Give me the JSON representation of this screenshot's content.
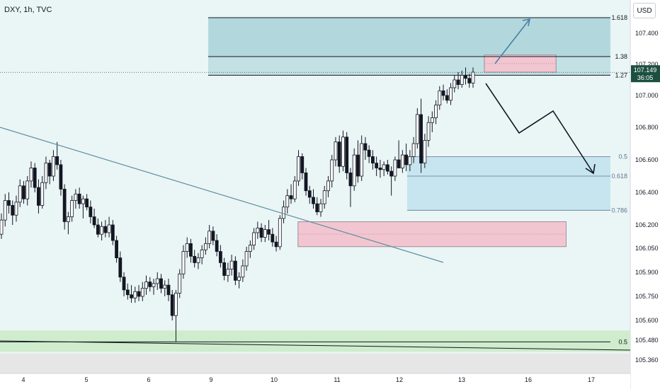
{
  "header": {
    "title": "DXY, 1h, TVC",
    "currency_button": "USD"
  },
  "price_tag": {
    "price": "107.149",
    "countdown": "36:05",
    "color": "#1c4f40"
  },
  "colors": {
    "background": "#eaf5f6",
    "bull": "#ffffff",
    "bear": "#131722",
    "fib_upper_zone": "#a8d2d8",
    "fib_lower_zone": "#bfe2ec",
    "supply_zone": "#f2c6d0",
    "demand_zone": "#cfeccc",
    "trendline": "#5f8fa0",
    "projection_up": "#4a7fa8",
    "projection_down": "#131722"
  },
  "chart_data": {
    "type": "candlestick",
    "symbol": "DXY",
    "timeframe": "1h",
    "source": "TVC",
    "y_axis": {
      "ticks": [
        107.4,
        107.2,
        107.0,
        106.8,
        106.6,
        106.4,
        106.2,
        106.05,
        105.9,
        105.75,
        105.6,
        105.48,
        105.36
      ],
      "tick_labels": [
        "107.400",
        "107.200",
        "107.000",
        "106.800",
        "106.600",
        "106.400",
        "106.200",
        "106.050",
        "105.900",
        "105.750",
        "105.600",
        "105.480",
        "105.360"
      ],
      "range": [
        105.33,
        107.6
      ]
    },
    "x_axis": {
      "labels": [
        "4",
        "5",
        "6",
        "9",
        "10",
        "11",
        "12",
        "13",
        "16",
        "17"
      ],
      "label_session_index": [
        0,
        1,
        2,
        3,
        4,
        5,
        6,
        7,
        8,
        9
      ]
    },
    "last_price": 107.149,
    "fib_levels_upper": [
      {
        "label": "1.618",
        "price": 107.5
      },
      {
        "label": "1.38",
        "price": 107.25
      },
      {
        "label": "1.27",
        "price": 107.13
      }
    ],
    "fib_levels_lower": [
      {
        "label": "0.5",
        "price": 106.62
      },
      {
        "label": "0.618",
        "price": 106.5
      },
      {
        "label": "0.786",
        "price": 106.29
      }
    ],
    "bottom_level": {
      "label": "0.5",
      "price": 105.47
    },
    "zones": [
      {
        "kind": "supply",
        "top": 107.26,
        "bottom": 107.15,
        "start_session": 7.34,
        "end_session": 8.44
      },
      {
        "kind": "demand",
        "top": 106.22,
        "bottom": 106.06,
        "start_session": 4.38,
        "end_session": 8.6
      }
    ],
    "candles": [
      {
        "o": 106.14,
        "h": 106.27,
        "l": 106.11,
        "c": 106.23
      },
      {
        "o": 106.23,
        "h": 106.39,
        "l": 106.19,
        "c": 106.35
      },
      {
        "o": 106.35,
        "h": 106.4,
        "l": 106.27,
        "c": 106.32
      },
      {
        "o": 106.32,
        "h": 106.35,
        "l": 106.2,
        "c": 106.26
      },
      {
        "o": 106.26,
        "h": 106.38,
        "l": 106.22,
        "c": 106.34
      },
      {
        "o": 106.34,
        "h": 106.48,
        "l": 106.31,
        "c": 106.44
      },
      {
        "o": 106.44,
        "h": 106.47,
        "l": 106.33,
        "c": 106.36
      },
      {
        "o": 106.36,
        "h": 106.5,
        "l": 106.32,
        "c": 106.47
      },
      {
        "o": 106.47,
        "h": 106.59,
        "l": 106.43,
        "c": 106.55
      },
      {
        "o": 106.55,
        "h": 106.58,
        "l": 106.4,
        "c": 106.43
      },
      {
        "o": 106.43,
        "h": 106.48,
        "l": 106.27,
        "c": 106.32
      },
      {
        "o": 106.32,
        "h": 106.5,
        "l": 106.3,
        "c": 106.46
      },
      {
        "o": 106.46,
        "h": 106.62,
        "l": 106.42,
        "c": 106.58
      },
      {
        "o": 106.58,
        "h": 106.6,
        "l": 106.45,
        "c": 106.5
      },
      {
        "o": 106.5,
        "h": 106.66,
        "l": 106.47,
        "c": 106.62
      },
      {
        "o": 106.62,
        "h": 106.71,
        "l": 106.54,
        "c": 106.57
      },
      {
        "o": 106.57,
        "h": 106.6,
        "l": 106.38,
        "c": 106.42
      },
      {
        "o": 106.42,
        "h": 106.45,
        "l": 106.17,
        "c": 106.22
      },
      {
        "o": 106.22,
        "h": 106.28,
        "l": 106.14,
        "c": 106.25
      },
      {
        "o": 106.25,
        "h": 106.38,
        "l": 106.22,
        "c": 106.35
      },
      {
        "o": 106.35,
        "h": 106.42,
        "l": 106.3,
        "c": 106.39
      },
      {
        "o": 106.39,
        "h": 106.43,
        "l": 106.3,
        "c": 106.33
      },
      {
        "o": 106.33,
        "h": 106.38,
        "l": 106.24,
        "c": 106.36
      },
      {
        "o": 106.36,
        "h": 106.39,
        "l": 106.29,
        "c": 106.31
      },
      {
        "o": 106.31,
        "h": 106.35,
        "l": 106.21,
        "c": 106.25
      },
      {
        "o": 106.25,
        "h": 106.3,
        "l": 106.18,
        "c": 106.2
      },
      {
        "o": 106.2,
        "h": 106.24,
        "l": 106.12,
        "c": 106.14
      },
      {
        "o": 106.14,
        "h": 106.22,
        "l": 106.1,
        "c": 106.19
      },
      {
        "o": 106.19,
        "h": 106.23,
        "l": 106.12,
        "c": 106.15
      },
      {
        "o": 106.15,
        "h": 106.25,
        "l": 106.12,
        "c": 106.2
      },
      {
        "o": 106.2,
        "h": 106.23,
        "l": 106.07,
        "c": 106.1
      },
      {
        "o": 106.1,
        "h": 106.13,
        "l": 105.96,
        "c": 105.99
      },
      {
        "o": 105.99,
        "h": 106.03,
        "l": 105.84,
        "c": 105.87
      },
      {
        "o": 105.87,
        "h": 105.9,
        "l": 105.75,
        "c": 105.79
      },
      {
        "o": 105.79,
        "h": 105.83,
        "l": 105.73,
        "c": 105.76
      },
      {
        "o": 105.76,
        "h": 105.82,
        "l": 105.71,
        "c": 105.74
      },
      {
        "o": 105.74,
        "h": 105.81,
        "l": 105.71,
        "c": 105.78
      },
      {
        "o": 105.78,
        "h": 105.82,
        "l": 105.72,
        "c": 105.75
      },
      {
        "o": 105.75,
        "h": 105.84,
        "l": 105.72,
        "c": 105.8
      },
      {
        "o": 105.8,
        "h": 105.88,
        "l": 105.76,
        "c": 105.84
      },
      {
        "o": 105.84,
        "h": 105.87,
        "l": 105.78,
        "c": 105.81
      },
      {
        "o": 105.81,
        "h": 105.86,
        "l": 105.76,
        "c": 105.83
      },
      {
        "o": 105.83,
        "h": 105.9,
        "l": 105.79,
        "c": 105.86
      },
      {
        "o": 105.86,
        "h": 105.89,
        "l": 105.77,
        "c": 105.8
      },
      {
        "o": 105.8,
        "h": 105.85,
        "l": 105.75,
        "c": 105.82
      },
      {
        "o": 105.82,
        "h": 105.86,
        "l": 105.72,
        "c": 105.76
      },
      {
        "o": 105.76,
        "h": 105.79,
        "l": 105.6,
        "c": 105.63
      },
      {
        "o": 105.63,
        "h": 105.79,
        "l": 105.47,
        "c": 105.77
      },
      {
        "o": 105.77,
        "h": 105.92,
        "l": 105.74,
        "c": 105.89
      },
      {
        "o": 105.89,
        "h": 106.07,
        "l": 105.86,
        "c": 106.03
      },
      {
        "o": 106.03,
        "h": 106.12,
        "l": 105.99,
        "c": 106.08
      },
      {
        "o": 106.08,
        "h": 106.11,
        "l": 105.96,
        "c": 106.0
      },
      {
        "o": 106.0,
        "h": 106.04,
        "l": 105.93,
        "c": 105.96
      },
      {
        "o": 105.96,
        "h": 106.02,
        "l": 105.92,
        "c": 105.99
      },
      {
        "o": 105.99,
        "h": 106.07,
        "l": 105.95,
        "c": 106.04
      },
      {
        "o": 106.04,
        "h": 106.12,
        "l": 106.01,
        "c": 106.08
      },
      {
        "o": 106.08,
        "h": 106.2,
        "l": 106.05,
        "c": 106.16
      },
      {
        "o": 106.16,
        "h": 106.19,
        "l": 106.07,
        "c": 106.1
      },
      {
        "o": 106.1,
        "h": 106.14,
        "l": 106.0,
        "c": 106.03
      },
      {
        "o": 106.03,
        "h": 106.07,
        "l": 105.93,
        "c": 105.96
      },
      {
        "o": 105.96,
        "h": 105.99,
        "l": 105.85,
        "c": 105.88
      },
      {
        "o": 105.88,
        "h": 105.96,
        "l": 105.84,
        "c": 105.92
      },
      {
        "o": 105.92,
        "h": 106.01,
        "l": 105.88,
        "c": 105.97
      },
      {
        "o": 105.97,
        "h": 106.0,
        "l": 105.82,
        "c": 105.85
      },
      {
        "o": 105.85,
        "h": 105.9,
        "l": 105.8,
        "c": 105.87
      },
      {
        "o": 105.87,
        "h": 105.98,
        "l": 105.84,
        "c": 105.94
      },
      {
        "o": 105.94,
        "h": 106.06,
        "l": 105.91,
        "c": 106.03
      },
      {
        "o": 106.03,
        "h": 106.1,
        "l": 105.99,
        "c": 106.07
      },
      {
        "o": 106.07,
        "h": 106.18,
        "l": 106.04,
        "c": 106.15
      },
      {
        "o": 106.15,
        "h": 106.22,
        "l": 106.11,
        "c": 106.18
      },
      {
        "o": 106.18,
        "h": 106.21,
        "l": 106.09,
        "c": 106.12
      },
      {
        "o": 106.12,
        "h": 106.2,
        "l": 106.09,
        "c": 106.17
      },
      {
        "o": 106.17,
        "h": 106.23,
        "l": 106.1,
        "c": 106.14
      },
      {
        "o": 106.14,
        "h": 106.18,
        "l": 106.06,
        "c": 106.09
      },
      {
        "o": 106.09,
        "h": 106.13,
        "l": 106.03,
        "c": 106.06
      },
      {
        "o": 106.06,
        "h": 106.26,
        "l": 106.04,
        "c": 106.24
      },
      {
        "o": 106.24,
        "h": 106.35,
        "l": 106.21,
        "c": 106.31
      },
      {
        "o": 106.31,
        "h": 106.42,
        "l": 106.27,
        "c": 106.38
      },
      {
        "o": 106.38,
        "h": 106.45,
        "l": 106.33,
        "c": 106.36
      },
      {
        "o": 106.36,
        "h": 106.5,
        "l": 106.34,
        "c": 106.47
      },
      {
        "o": 106.47,
        "h": 106.66,
        "l": 106.44,
        "c": 106.62
      },
      {
        "o": 106.62,
        "h": 106.64,
        "l": 106.48,
        "c": 106.52
      },
      {
        "o": 106.52,
        "h": 106.55,
        "l": 106.38,
        "c": 106.41
      },
      {
        "o": 106.41,
        "h": 106.44,
        "l": 106.33,
        "c": 106.37
      },
      {
        "o": 106.37,
        "h": 106.42,
        "l": 106.3,
        "c": 106.33
      },
      {
        "o": 106.33,
        "h": 106.37,
        "l": 106.26,
        "c": 106.28
      },
      {
        "o": 106.28,
        "h": 106.36,
        "l": 106.25,
        "c": 106.33
      },
      {
        "o": 106.33,
        "h": 106.44,
        "l": 106.3,
        "c": 106.41
      },
      {
        "o": 106.41,
        "h": 106.5,
        "l": 106.37,
        "c": 106.47
      },
      {
        "o": 106.47,
        "h": 106.63,
        "l": 106.43,
        "c": 106.6
      },
      {
        "o": 106.6,
        "h": 106.74,
        "l": 106.56,
        "c": 106.71
      },
      {
        "o": 106.71,
        "h": 106.75,
        "l": 106.52,
        "c": 106.56
      },
      {
        "o": 106.56,
        "h": 106.78,
        "l": 106.53,
        "c": 106.74
      },
      {
        "o": 106.74,
        "h": 106.77,
        "l": 106.48,
        "c": 106.52
      },
      {
        "o": 106.52,
        "h": 106.55,
        "l": 106.31,
        "c": 106.44
      },
      {
        "o": 106.44,
        "h": 106.67,
        "l": 106.41,
        "c": 106.63
      },
      {
        "o": 106.63,
        "h": 106.72,
        "l": 106.46,
        "c": 106.5
      },
      {
        "o": 106.5,
        "h": 106.75,
        "l": 106.47,
        "c": 106.7
      },
      {
        "o": 106.7,
        "h": 106.74,
        "l": 106.6,
        "c": 106.66
      },
      {
        "o": 106.66,
        "h": 106.69,
        "l": 106.58,
        "c": 106.62
      },
      {
        "o": 106.62,
        "h": 106.66,
        "l": 106.54,
        "c": 106.58
      },
      {
        "o": 106.58,
        "h": 106.62,
        "l": 106.5,
        "c": 106.55
      },
      {
        "o": 106.55,
        "h": 106.6,
        "l": 106.49,
        "c": 106.54
      },
      {
        "o": 106.54,
        "h": 106.59,
        "l": 106.5,
        "c": 106.57
      },
      {
        "o": 106.57,
        "h": 106.6,
        "l": 106.51,
        "c": 106.53
      },
      {
        "o": 106.53,
        "h": 106.56,
        "l": 106.38,
        "c": 106.5
      },
      {
        "o": 106.5,
        "h": 106.62,
        "l": 106.47,
        "c": 106.6
      },
      {
        "o": 106.6,
        "h": 106.72,
        "l": 106.56,
        "c": 106.55
      },
      {
        "o": 106.55,
        "h": 106.66,
        "l": 106.52,
        "c": 106.63
      },
      {
        "o": 106.63,
        "h": 106.7,
        "l": 106.53,
        "c": 106.57
      },
      {
        "o": 106.57,
        "h": 106.66,
        "l": 106.53,
        "c": 106.62
      },
      {
        "o": 106.62,
        "h": 106.74,
        "l": 106.58,
        "c": 106.7
      },
      {
        "o": 106.7,
        "h": 106.92,
        "l": 106.67,
        "c": 106.88
      },
      {
        "o": 106.88,
        "h": 106.98,
        "l": 106.52,
        "c": 106.58
      },
      {
        "o": 106.58,
        "h": 106.76,
        "l": 106.55,
        "c": 106.72
      },
      {
        "o": 106.72,
        "h": 106.87,
        "l": 106.68,
        "c": 106.83
      },
      {
        "o": 106.83,
        "h": 106.9,
        "l": 106.77,
        "c": 106.86
      },
      {
        "o": 106.86,
        "h": 106.97,
        "l": 106.82,
        "c": 106.94
      },
      {
        "o": 106.94,
        "h": 107.06,
        "l": 106.91,
        "c": 107.03
      },
      {
        "o": 107.03,
        "h": 107.07,
        "l": 106.97,
        "c": 107.0
      },
      {
        "o": 107.0,
        "h": 107.04,
        "l": 106.95,
        "c": 106.97
      },
      {
        "o": 106.97,
        "h": 107.08,
        "l": 106.94,
        "c": 107.05
      },
      {
        "o": 107.05,
        "h": 107.13,
        "l": 107.02,
        "c": 107.1
      },
      {
        "o": 107.1,
        "h": 107.15,
        "l": 107.04,
        "c": 107.07
      },
      {
        "o": 107.07,
        "h": 107.16,
        "l": 107.05,
        "c": 107.13
      },
      {
        "o": 107.13,
        "h": 107.18,
        "l": 107.07,
        "c": 107.11
      },
      {
        "o": 107.11,
        "h": 107.14,
        "l": 107.05,
        "c": 107.08
      },
      {
        "o": 107.08,
        "h": 107.18,
        "l": 107.05,
        "c": 107.15
      }
    ],
    "annotations": [
      "diagonal trendline",
      "arrow projected up to the 1.618 level",
      "zig-zag path projected down into the 0.618 zone, ending in an arrow"
    ]
  }
}
